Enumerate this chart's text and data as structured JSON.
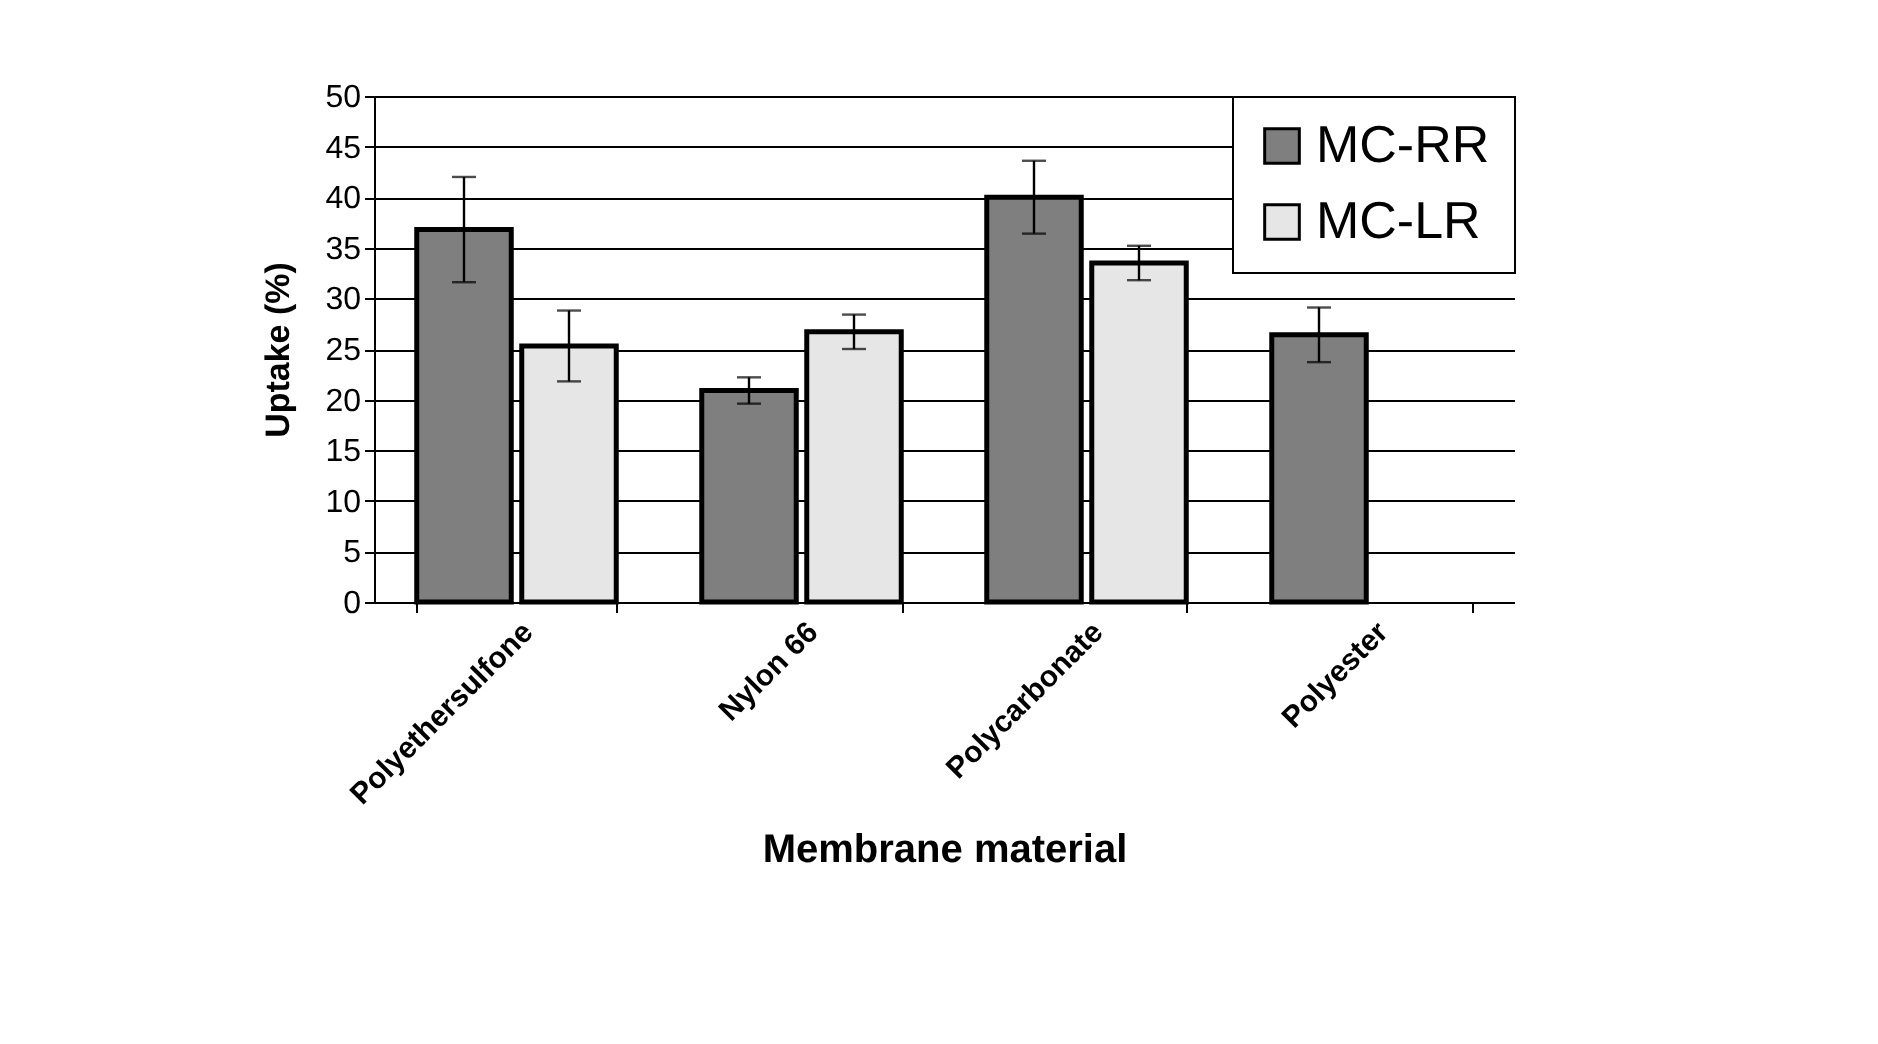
{
  "chart_data": {
    "type": "bar",
    "xlabel": "Membrane material",
    "ylabel": "Uptake (%)",
    "categories": [
      "Polyethersulfone",
      "Nylon 66",
      "Polycarbonate",
      "Polyester"
    ],
    "series": [
      {
        "name": "MC-RR",
        "color": "#7f7f7f",
        "values": [
          36.8,
          20.9,
          40.0,
          26.4
        ],
        "errors": [
          5.2,
          1.3,
          3.6,
          2.7
        ]
      },
      {
        "name": "MC-LR",
        "color": "#e6e6e6",
        "values": [
          25.3,
          26.7,
          33.5,
          null
        ],
        "errors": [
          3.5,
          1.7,
          1.7,
          null
        ]
      }
    ],
    "ylim": [
      0,
      50
    ],
    "yticks": [
      0,
      5,
      10,
      15,
      20,
      25,
      30,
      35,
      40,
      45,
      50
    ],
    "grid": "y",
    "legend": "top right"
  }
}
